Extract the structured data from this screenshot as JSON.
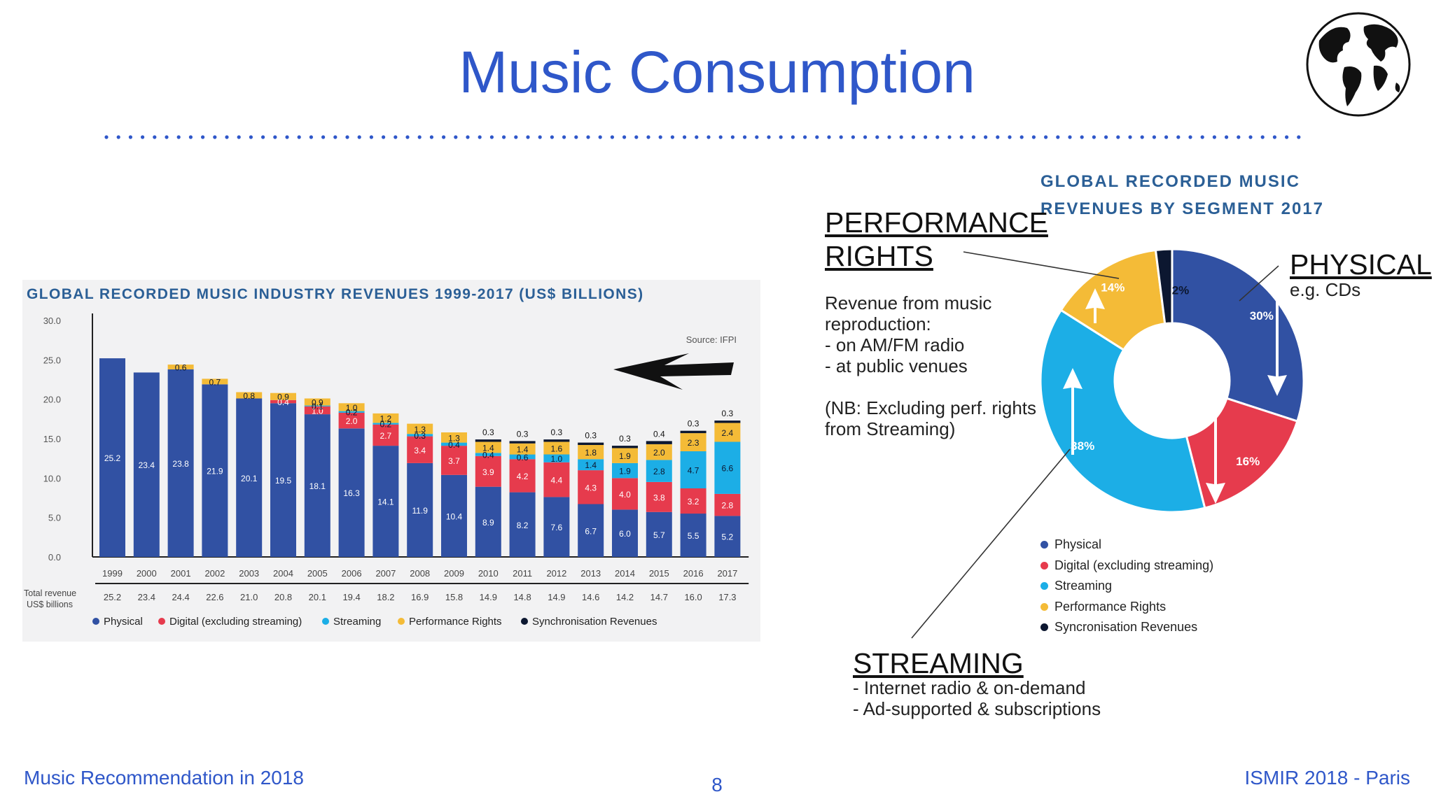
{
  "slide": {
    "title": "Music Consumption",
    "footer_left": "Music Recommendation in 2018",
    "footer_right": "ISMIR 2018 - Paris",
    "page_number": "8"
  },
  "annotations": {
    "performance_rights": {
      "heading_line1": "PERFORMANCE",
      "heading_line2": "RIGHTS",
      "lines": [
        "Revenue from music",
        "reproduction:",
        "- on AM/FM radio",
        "- at public venues"
      ],
      "note": [
        "(NB: Excluding perf. rights",
        "from Streaming)"
      ]
    },
    "physical": {
      "heading": "PHYSICAL",
      "desc": "e.g. CDs"
    },
    "streaming": {
      "heading": "STREAMING",
      "lines": [
        "- Internet radio & on-demand",
        "- Ad-supported & subscriptions"
      ]
    }
  },
  "colors": {
    "physical": "#3151a3",
    "digital": "#e63b4d",
    "streaming": "#1caee6",
    "performance": "#f4bb37",
    "sync": "#0c1730",
    "title_blue": "#2f57c9",
    "chart_title": "#2b5f96"
  },
  "chart_data": [
    {
      "type": "bar",
      "stacked": true,
      "title": "GLOBAL RECORDED MUSIC INDUSTRY REVENUES 1999-2017 (US$ BILLIONS)",
      "source": "Source: IFPI",
      "ylim": [
        0,
        30
      ],
      "yticks": [
        "0.0",
        "5.0",
        "10.0",
        "15.0",
        "20.0",
        "25.0",
        "30.0"
      ],
      "grid": false,
      "legend_position": "bottom",
      "categories": [
        "1999",
        "2000",
        "2001",
        "2002",
        "2003",
        "2004",
        "2005",
        "2006",
        "2007",
        "2008",
        "2009",
        "2010",
        "2011",
        "2012",
        "2013",
        "2014",
        "2015",
        "2016",
        "2017"
      ],
      "series": [
        {
          "name": "Physical",
          "color": "#3151a3",
          "values": [
            25.2,
            23.4,
            23.8,
            21.9,
            20.1,
            19.5,
            18.1,
            16.3,
            14.1,
            11.9,
            10.4,
            8.9,
            8.2,
            7.6,
            6.7,
            6.0,
            5.7,
            5.5,
            5.2
          ]
        },
        {
          "name": "Digital (excluding streaming)",
          "color": "#e63b4d",
          "values": [
            null,
            null,
            null,
            null,
            null,
            0.4,
            1.0,
            2.0,
            2.7,
            3.4,
            3.7,
            3.9,
            4.2,
            4.4,
            4.3,
            4.0,
            3.8,
            3.2,
            2.8
          ]
        },
        {
          "name": "Streaming",
          "color": "#1caee6",
          "values": [
            null,
            null,
            null,
            null,
            null,
            null,
            0.1,
            0.2,
            0.2,
            0.3,
            0.4,
            0.4,
            0.6,
            1.0,
            1.4,
            1.9,
            2.8,
            4.7,
            6.6
          ]
        },
        {
          "name": "Performance Rights",
          "color": "#f4bb37",
          "values": [
            null,
            null,
            0.6,
            0.7,
            0.8,
            0.9,
            0.9,
            1.0,
            1.2,
            1.3,
            1.3,
            1.4,
            1.4,
            1.6,
            1.8,
            1.9,
            2.0,
            2.3,
            2.4
          ]
        },
        {
          "name": "Synchronisation Revenues",
          "color": "#0c1730",
          "values": [
            null,
            null,
            null,
            null,
            null,
            null,
            null,
            null,
            null,
            null,
            null,
            0.3,
            0.3,
            0.3,
            0.3,
            0.3,
            0.4,
            0.3,
            0.3
          ]
        }
      ],
      "total_label": [
        "Total revenue",
        "US$ billions"
      ],
      "totals": [
        "25.2",
        "23.4",
        "24.4",
        "22.6",
        "21.0",
        "20.8",
        "20.1",
        "19.4",
        "18.2",
        "16.9",
        "15.8",
        "14.9",
        "14.8",
        "14.9",
        "14.6",
        "14.2",
        "14.7",
        "16.0",
        "17.3"
      ]
    },
    {
      "type": "pie",
      "donut": true,
      "title_lines": [
        "GLOBAL RECORDED MUSIC",
        "REVENUES BY SEGMENT 2017"
      ],
      "legend_position": "bottom-left",
      "slices": [
        {
          "label": "Physical",
          "value": 30,
          "display": "30%",
          "color": "#3151a3"
        },
        {
          "label": "Digital (excluding streaming)",
          "value": 16,
          "display": "16%",
          "color": "#e63b4d"
        },
        {
          "label": "Streaming",
          "value": 38,
          "display": "38%",
          "color": "#1caee6"
        },
        {
          "label": "Performance Rights",
          "value": 14,
          "display": "14%",
          "color": "#f4bb37"
        },
        {
          "label": "Syncronisation Revenues",
          "value": 2,
          "display": "2%",
          "color": "#0c1730"
        }
      ]
    }
  ]
}
